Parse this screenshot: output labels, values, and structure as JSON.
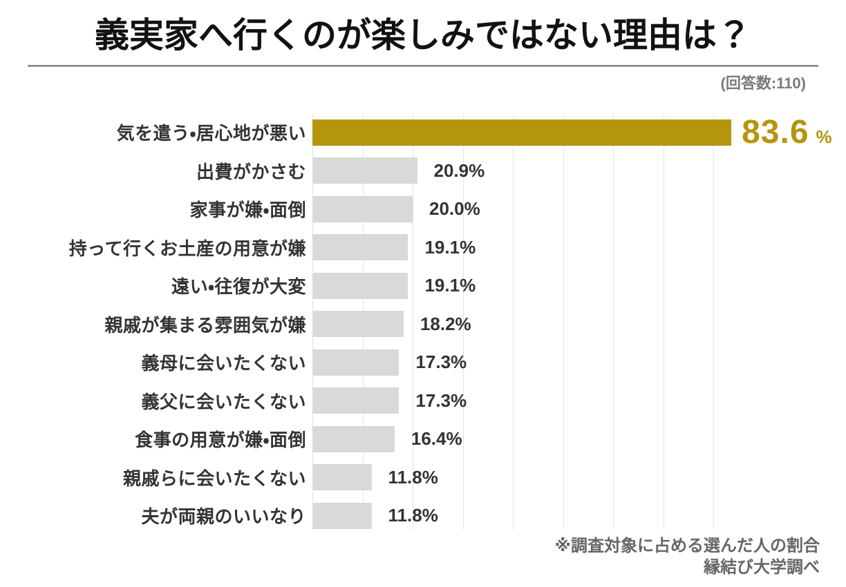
{
  "header": {
    "title": "義実家へ行くのが楽しみではない理由は？",
    "respondents": "(回答数:110)"
  },
  "chart_data": {
    "type": "bar",
    "orientation": "horizontal",
    "title": "義実家へ行くのが楽しみではない理由は？",
    "categories": [
      "気を遣う・居心地が悪い",
      "出費がかさむ",
      "家事が嫌・面倒",
      "持って行くお土産の用意が嫌",
      "遠い・往復が大変",
      "親戚が集まる雰囲気が嫌",
      "義母に会いたくない",
      "義父に会いたくない",
      "食事の用意が嫌・面倒",
      "親戚らに会いたくない",
      "夫が両親のいいなり"
    ],
    "values": [
      83.6,
      20.9,
      20.0,
      19.1,
      19.1,
      18.2,
      17.3,
      17.3,
      16.4,
      11.8,
      11.8
    ],
    "value_labels": [
      "83.6",
      "20.9%",
      "20.0%",
      "19.1%",
      "19.1%",
      "18.2%",
      "17.3%",
      "17.3%",
      "16.4%",
      "11.8%",
      "11.8%"
    ],
    "highlight_index": 0,
    "highlight_value": "83.6",
    "highlight_unit": "%",
    "xlim": [
      0,
      80
    ],
    "grid_step": 10,
    "grid_on": true,
    "legend": "none",
    "colors": {
      "bar_highlight": "#b6950e",
      "bar_default": "#d9d9d9",
      "value_highlight": "#b6950e",
      "value_default": "#333333",
      "gridline": "#e3e3e3"
    }
  },
  "footer": {
    "note1": "※調査対象に占める選んだ人の割合",
    "note2": "縁結び大学調べ"
  }
}
